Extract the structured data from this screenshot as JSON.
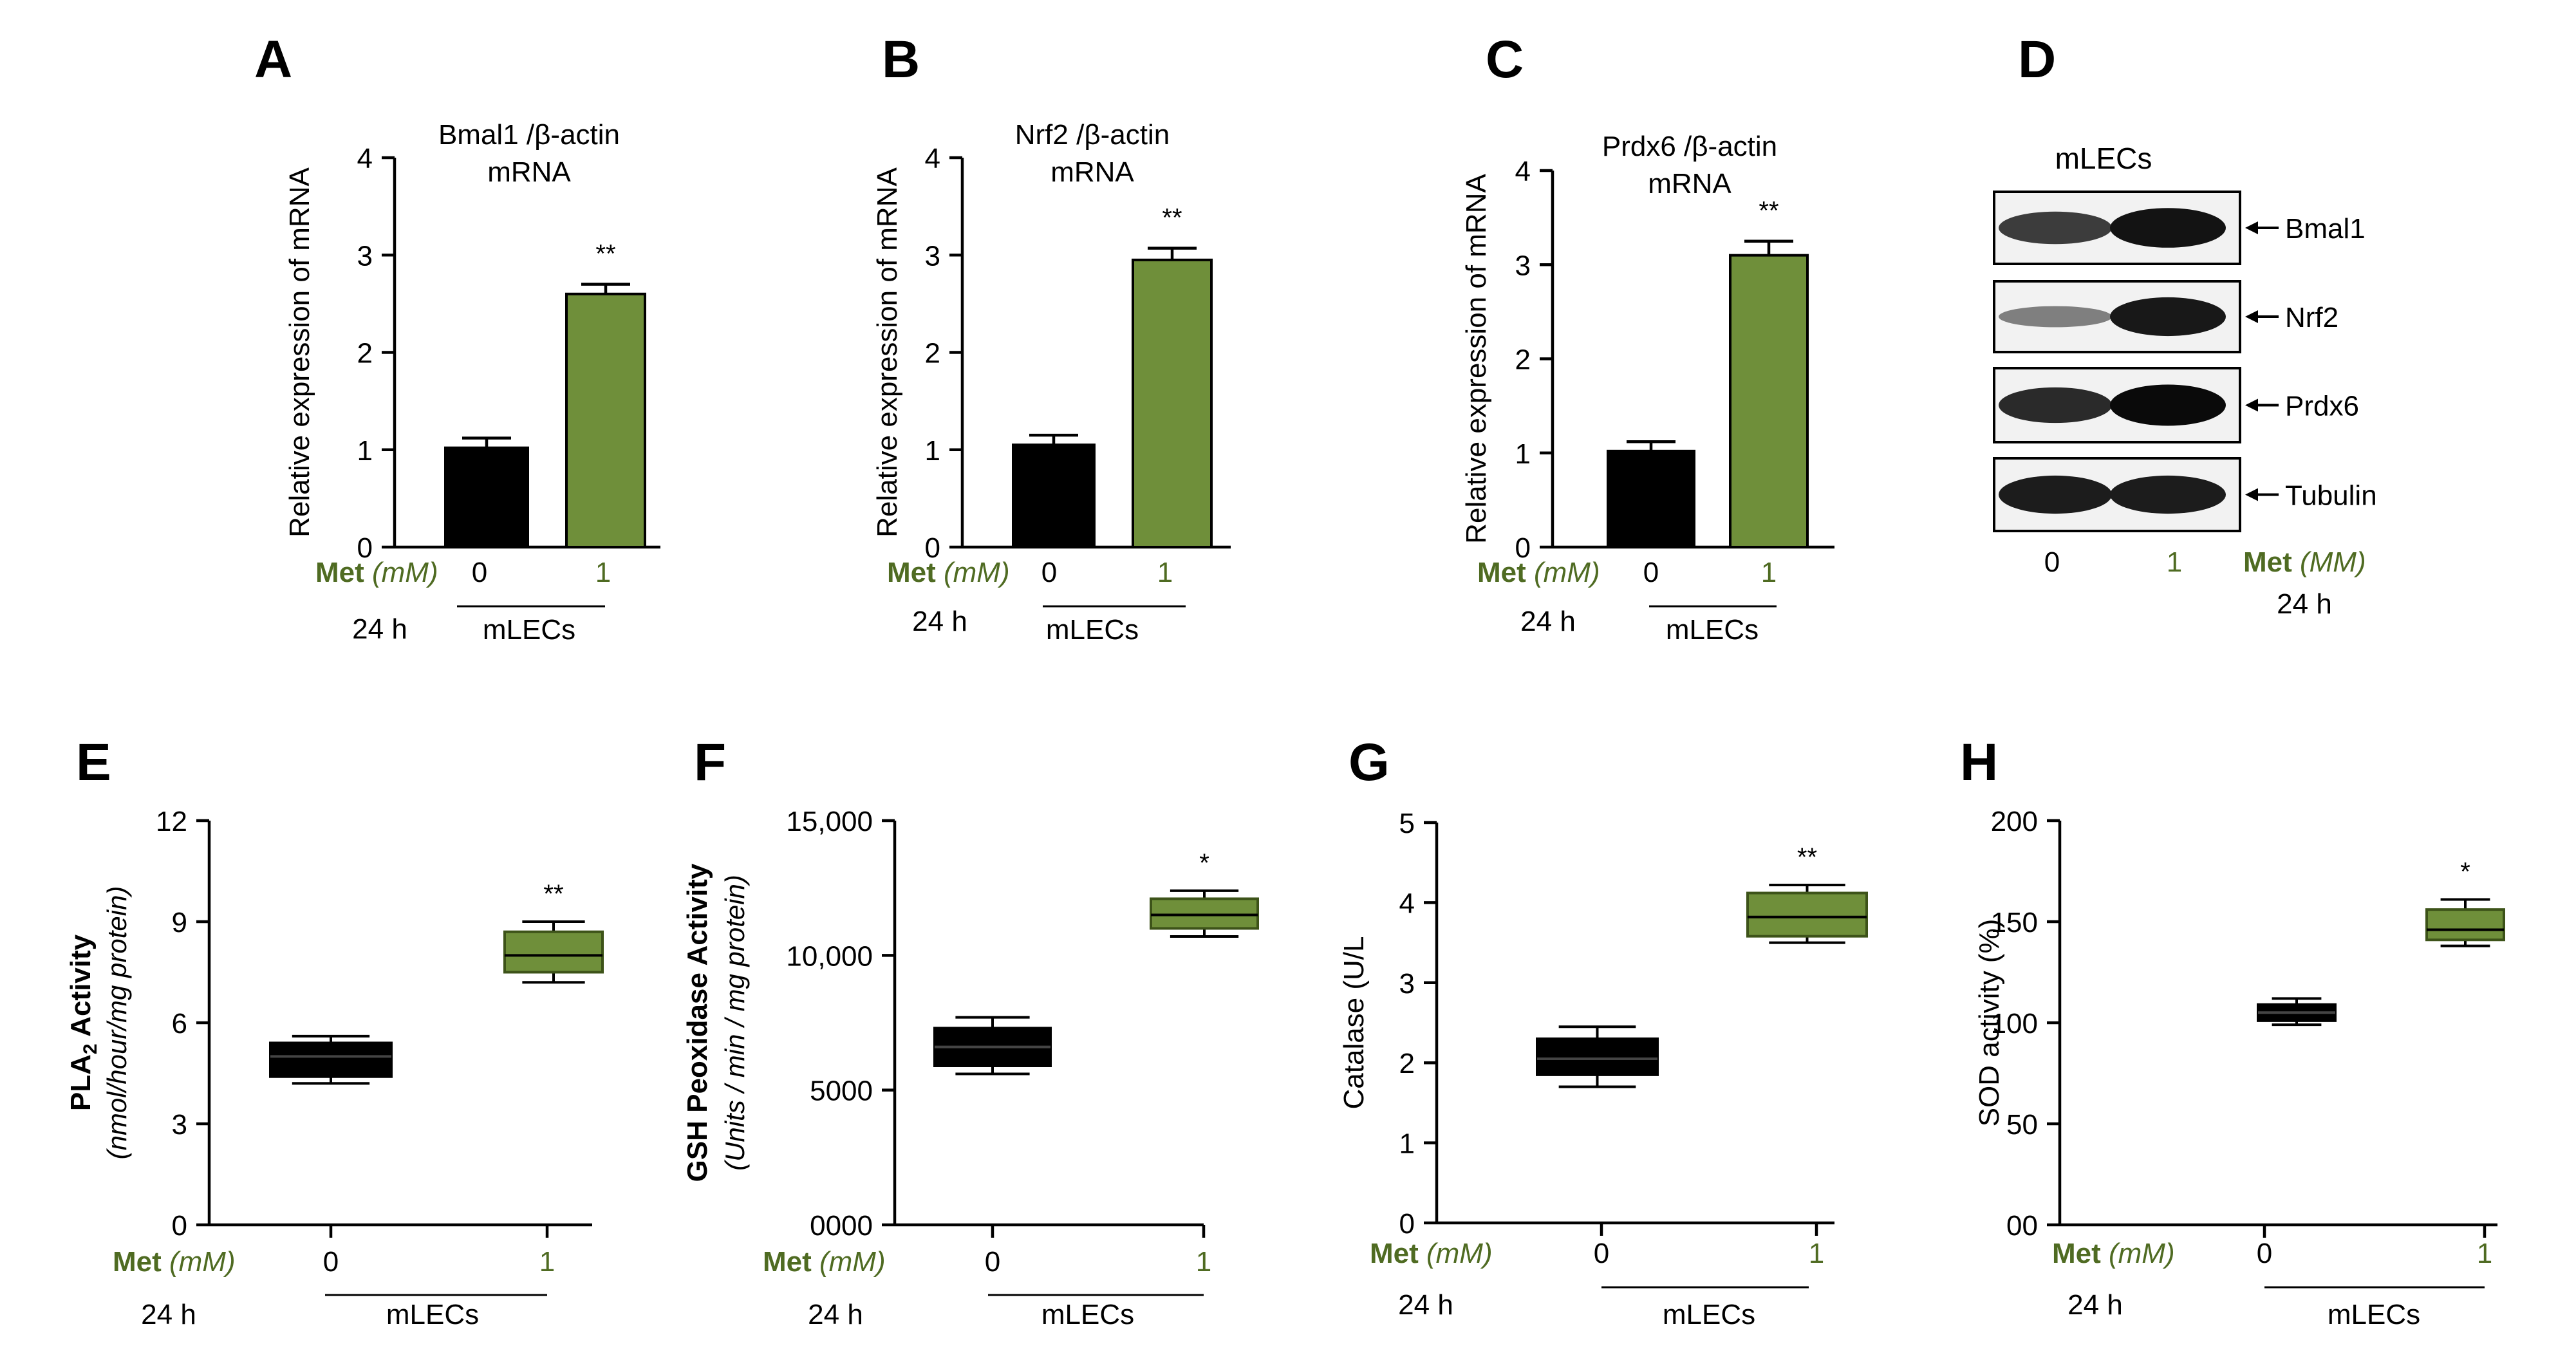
{
  "colors": {
    "control": "#000000",
    "treated": "#6f8f3a",
    "treated_dark": "#3d5319",
    "met_label": "#4f6b22"
  },
  "common": {
    "met_bold": "Met",
    "met_unit": "(mM)",
    "time": "24 h",
    "group": "mLECs",
    "x_labels": [
      "0",
      "1"
    ]
  },
  "chart_data": [
    {
      "panel": "A",
      "type": "bar",
      "title_line1": "Bmal1 /β-actin",
      "title_line2": "mRNA",
      "ylabel": "Relative expression of mRNA",
      "yticks": [
        "0",
        "1",
        "2",
        "3",
        "4"
      ],
      "ylim": [
        0,
        4
      ],
      "categories": [
        "0",
        "1"
      ],
      "values": [
        1.02,
        2.6
      ],
      "errors": [
        0.1,
        0.1
      ],
      "significance": "**"
    },
    {
      "panel": "B",
      "type": "bar",
      "title_line1": "Nrf2 /β-actin",
      "title_line2": "mRNA",
      "ylabel": "Relative expression of mRNA",
      "yticks": [
        "0",
        "1",
        "2",
        "3",
        "4"
      ],
      "ylim": [
        0,
        4
      ],
      "categories": [
        "0",
        "1"
      ],
      "values": [
        1.05,
        2.95
      ],
      "errors": [
        0.1,
        0.12
      ],
      "significance": "**"
    },
    {
      "panel": "C",
      "type": "bar",
      "title_line1": "Prdx6 /β-actin",
      "title_line2": "mRNA",
      "ylabel": "Relative expression of mRNA",
      "yticks": [
        "0",
        "1",
        "2",
        "3",
        "4"
      ],
      "ylim": [
        0,
        4
      ],
      "categories": [
        "0",
        "1"
      ],
      "values": [
        1.02,
        3.1
      ],
      "errors": [
        0.1,
        0.15
      ],
      "significance": "**"
    },
    {
      "panel": "E",
      "type": "box",
      "ylabel_main": "PLA",
      "ylabel_sub": "2",
      "ylabel_rest": " Activity",
      "ylabel_unit": "(nmol/hour/mg protein)",
      "yticks": [
        "0",
        "3",
        "6",
        "9",
        "12"
      ],
      "ylim": [
        0,
        12
      ],
      "categories": [
        "0",
        "1"
      ],
      "boxes": [
        {
          "min": 4.2,
          "q1": 4.4,
          "median": 5.0,
          "q3": 5.4,
          "max": 5.6
        },
        {
          "min": 7.2,
          "q1": 7.5,
          "median": 8.0,
          "q3": 8.7,
          "max": 9.0
        }
      ],
      "significance": "**"
    },
    {
      "panel": "F",
      "type": "box",
      "ylabel_main": "GSH Peoxidase Activity",
      "ylabel_unit": "(Units / min / mg protein)",
      "yticks": [
        "0000",
        "5000",
        "10,000",
        "15,000"
      ],
      "ylim": [
        0,
        15000
      ],
      "categories": [
        "0",
        "1"
      ],
      "boxes": [
        {
          "min": 5600,
          "q1": 5900,
          "median": 6600,
          "q3": 7300,
          "max": 7700
        },
        {
          "min": 10700,
          "q1": 11000,
          "median": 11500,
          "q3": 12100,
          "max": 12400
        }
      ],
      "significance": "*"
    },
    {
      "panel": "G",
      "type": "box",
      "ylabel": "Catalase (U/L",
      "yticks": [
        "0",
        "1",
        "2",
        "3",
        "4",
        "5"
      ],
      "ylim": [
        0,
        5
      ],
      "categories": [
        "0",
        "1"
      ],
      "boxes": [
        {
          "min": 1.7,
          "q1": 1.85,
          "median": 2.05,
          "q3": 2.3,
          "max": 2.45
        },
        {
          "min": 3.5,
          "q1": 3.58,
          "median": 3.82,
          "q3": 4.12,
          "max": 4.22
        }
      ],
      "significance": "**"
    },
    {
      "panel": "H",
      "type": "box",
      "ylabel": "SOD activity (%)",
      "yticks": [
        "00",
        "50",
        "100",
        "150",
        "200"
      ],
      "ylim": [
        0,
        200
      ],
      "categories": [
        "0",
        "1"
      ],
      "boxes": [
        {
          "min": 99,
          "q1": 101,
          "median": 105,
          "q3": 109,
          "max": 112
        },
        {
          "min": 138,
          "q1": 141,
          "median": 146,
          "q3": 156,
          "max": 161
        }
      ],
      "significance": "*"
    }
  ],
  "western_blot": {
    "panel": "D",
    "header": "mLECs",
    "bands": [
      "Bmal1",
      "Nrf2",
      "Prdx6",
      "Tubulin"
    ],
    "band_intensity": [
      [
        0.72,
        0.95
      ],
      [
        0.35,
        0.92
      ],
      [
        0.82,
        1.0
      ],
      [
        0.9,
        0.9
      ]
    ],
    "lanes": [
      "0",
      "1"
    ],
    "met_bold": "Met",
    "met_unit": "(MM)",
    "time": "24 h"
  }
}
